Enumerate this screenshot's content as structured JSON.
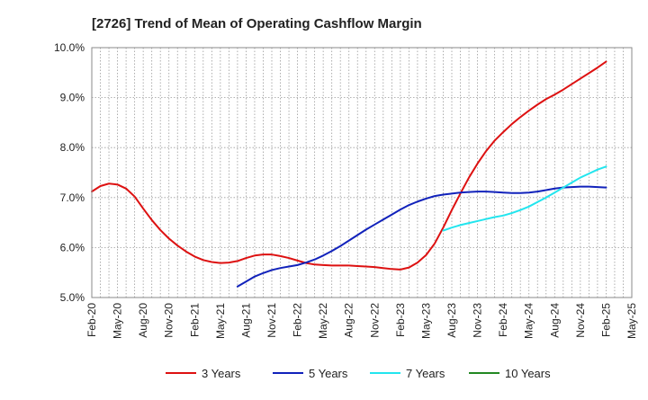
{
  "chart_data": {
    "type": "line",
    "title": "[2726]  Trend of Mean of Operating Cashflow Margin",
    "xlabel": "",
    "ylabel": "",
    "x_ticks": [
      "Feb-20",
      "May-20",
      "Aug-20",
      "Nov-20",
      "Feb-21",
      "May-21",
      "Aug-21",
      "Nov-21",
      "Feb-22",
      "May-22",
      "Aug-22",
      "Nov-22",
      "Feb-23",
      "May-23",
      "Aug-23",
      "Nov-23",
      "Feb-24",
      "May-24",
      "Aug-24",
      "Nov-24",
      "Feb-25",
      "May-25"
    ],
    "y_ticks": [
      "5.0%",
      "6.0%",
      "7.0%",
      "8.0%",
      "9.0%",
      "10.0%"
    ],
    "ylim": [
      5.0,
      10.0
    ],
    "grid": true,
    "legend_position": "bottom",
    "series": [
      {
        "name": "3 Years",
        "color": "#dd1111",
        "points": [
          [
            "Feb-20",
            7.12
          ],
          [
            "Mar-20",
            7.23
          ],
          [
            "Apr-20",
            7.28
          ],
          [
            "May-20",
            7.26
          ],
          [
            "Jun-20",
            7.18
          ],
          [
            "Jul-20",
            7.02
          ],
          [
            "Aug-20",
            6.78
          ],
          [
            "Sep-20",
            6.55
          ],
          [
            "Oct-20",
            6.35
          ],
          [
            "Nov-20",
            6.18
          ],
          [
            "Dec-20",
            6.04
          ],
          [
            "Jan-21",
            5.92
          ],
          [
            "Feb-21",
            5.82
          ],
          [
            "Mar-21",
            5.75
          ],
          [
            "Apr-21",
            5.71
          ],
          [
            "May-21",
            5.69
          ],
          [
            "Jun-21",
            5.7
          ],
          [
            "Jul-21",
            5.73
          ],
          [
            "Aug-21",
            5.79
          ],
          [
            "Sep-21",
            5.84
          ],
          [
            "Oct-21",
            5.86
          ],
          [
            "Nov-21",
            5.86
          ],
          [
            "Dec-21",
            5.83
          ],
          [
            "Jan-22",
            5.79
          ],
          [
            "Feb-22",
            5.74
          ],
          [
            "Mar-22",
            5.69
          ],
          [
            "Apr-22",
            5.66
          ],
          [
            "May-22",
            5.65
          ],
          [
            "Jun-22",
            5.64
          ],
          [
            "Jul-22",
            5.64
          ],
          [
            "Aug-22",
            5.64
          ],
          [
            "Sep-22",
            5.63
          ],
          [
            "Oct-22",
            5.62
          ],
          [
            "Nov-22",
            5.61
          ],
          [
            "Dec-22",
            5.59
          ],
          [
            "Jan-23",
            5.57
          ],
          [
            "Feb-23",
            5.56
          ],
          [
            "Mar-23",
            5.6
          ],
          [
            "Apr-23",
            5.7
          ],
          [
            "May-23",
            5.85
          ],
          [
            "Jun-23",
            6.08
          ],
          [
            "Jul-23",
            6.4
          ],
          [
            "Aug-23",
            6.75
          ],
          [
            "Sep-23",
            7.08
          ],
          [
            "Oct-23",
            7.4
          ],
          [
            "Nov-23",
            7.68
          ],
          [
            "Dec-23",
            7.93
          ],
          [
            "Jan-24",
            8.14
          ],
          [
            "Feb-24",
            8.31
          ],
          [
            "Mar-24",
            8.47
          ],
          [
            "Apr-24",
            8.61
          ],
          [
            "May-24",
            8.74
          ],
          [
            "Jun-24",
            8.86
          ],
          [
            "Jul-24",
            8.97
          ],
          [
            "Aug-24",
            9.06
          ],
          [
            "Sep-24",
            9.16
          ],
          [
            "Oct-24",
            9.27
          ],
          [
            "Nov-24",
            9.38
          ],
          [
            "Dec-24",
            9.49
          ],
          [
            "Jan-25",
            9.6
          ],
          [
            "Feb-25",
            9.72
          ]
        ]
      },
      {
        "name": "5 Years",
        "color": "#1122bb",
        "points": [
          [
            "Jul-21",
            5.22
          ],
          [
            "Aug-21",
            5.32
          ],
          [
            "Sep-21",
            5.42
          ],
          [
            "Oct-21",
            5.49
          ],
          [
            "Nov-21",
            5.55
          ],
          [
            "Dec-21",
            5.59
          ],
          [
            "Jan-22",
            5.62
          ],
          [
            "Feb-22",
            5.65
          ],
          [
            "Mar-22",
            5.7
          ],
          [
            "Apr-22",
            5.76
          ],
          [
            "May-22",
            5.84
          ],
          [
            "Jun-22",
            5.93
          ],
          [
            "Jul-22",
            6.03
          ],
          [
            "Aug-22",
            6.14
          ],
          [
            "Sep-22",
            6.25
          ],
          [
            "Oct-22",
            6.36
          ],
          [
            "Nov-22",
            6.46
          ],
          [
            "Dec-22",
            6.56
          ],
          [
            "Jan-23",
            6.66
          ],
          [
            "Feb-23",
            6.76
          ],
          [
            "Mar-23",
            6.85
          ],
          [
            "Apr-23",
            6.92
          ],
          [
            "May-23",
            6.98
          ],
          [
            "Jun-23",
            7.03
          ],
          [
            "Jul-23",
            7.06
          ],
          [
            "Aug-23",
            7.08
          ],
          [
            "Sep-23",
            7.1
          ],
          [
            "Oct-23",
            7.11
          ],
          [
            "Nov-23",
            7.12
          ],
          [
            "Dec-23",
            7.12
          ],
          [
            "Jan-24",
            7.11
          ],
          [
            "Feb-24",
            7.1
          ],
          [
            "Mar-24",
            7.09
          ],
          [
            "Apr-24",
            7.09
          ],
          [
            "May-24",
            7.1
          ],
          [
            "Jun-24",
            7.12
          ],
          [
            "Jul-24",
            7.15
          ],
          [
            "Aug-24",
            7.18
          ],
          [
            "Sep-24",
            7.2
          ],
          [
            "Oct-24",
            7.21
          ],
          [
            "Nov-24",
            7.22
          ],
          [
            "Dec-24",
            7.22
          ],
          [
            "Jan-25",
            7.21
          ],
          [
            "Feb-25",
            7.2
          ]
        ]
      },
      {
        "name": "7 Years",
        "color": "#22e5ee",
        "points": [
          [
            "Jul-23",
            6.34
          ],
          [
            "Aug-23",
            6.4
          ],
          [
            "Sep-23",
            6.45
          ],
          [
            "Oct-23",
            6.49
          ],
          [
            "Nov-23",
            6.53
          ],
          [
            "Dec-23",
            6.57
          ],
          [
            "Jan-24",
            6.61
          ],
          [
            "Feb-24",
            6.64
          ],
          [
            "Mar-24",
            6.69
          ],
          [
            "Apr-24",
            6.75
          ],
          [
            "May-24",
            6.82
          ],
          [
            "Jun-24",
            6.91
          ],
          [
            "Jul-24",
            7.0
          ],
          [
            "Aug-24",
            7.1
          ],
          [
            "Sep-24",
            7.2
          ],
          [
            "Oct-24",
            7.3
          ],
          [
            "Nov-24",
            7.4
          ],
          [
            "Dec-24",
            7.48
          ],
          [
            "Jan-25",
            7.56
          ],
          [
            "Feb-25",
            7.62
          ]
        ]
      },
      {
        "name": "10 Years",
        "color": "#228822",
        "points": []
      }
    ]
  }
}
